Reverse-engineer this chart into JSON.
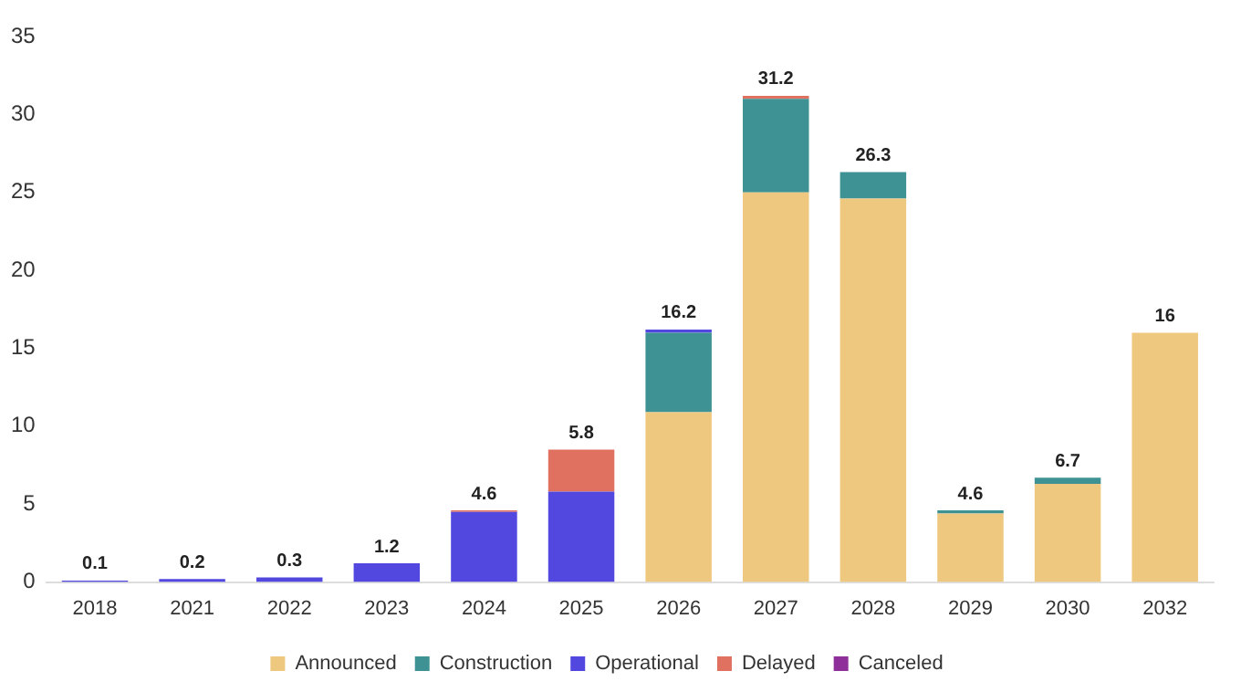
{
  "chart_data": {
    "type": "bar",
    "stacked": true,
    "categories": [
      "2018",
      "2021",
      "2022",
      "2023",
      "2024",
      "2025",
      "2026",
      "2027",
      "2028",
      "2029",
      "2030",
      "2032"
    ],
    "series": [
      {
        "name": "Announced",
        "color": "#efc87f",
        "values": [
          0,
          0,
          0,
          0,
          0,
          0,
          10.9,
          25.0,
          24.6,
          4.4,
          6.3,
          16
        ]
      },
      {
        "name": "Construction",
        "color": "#3f9294",
        "values": [
          0,
          0,
          0,
          0,
          0,
          0,
          5.1,
          6.0,
          1.7,
          0.2,
          0.4,
          0
        ]
      },
      {
        "name": "Operational",
        "color": "#5248e0",
        "values": [
          0.1,
          0.2,
          0.3,
          1.2,
          4.5,
          5.8,
          0.2,
          0,
          0,
          0,
          0,
          0
        ]
      },
      {
        "name": "Delayed",
        "color": "#e07060",
        "values": [
          0,
          0,
          0,
          0,
          0.1,
          2.7,
          0,
          0.2,
          0,
          0,
          0,
          0
        ]
      },
      {
        "name": "Canceled",
        "color": "#8e2f9a",
        "values": [
          0,
          0,
          0,
          0,
          0,
          0,
          0,
          0,
          0,
          0,
          0,
          0
        ]
      }
    ],
    "annotations": [
      {
        "text": "0.1",
        "x": "2018",
        "y": 0.1
      },
      {
        "text": "0.2",
        "x": "2021",
        "y": 0.2
      },
      {
        "text": "0.3",
        "x": "2022",
        "y": 0.3
      },
      {
        "text": "1.2",
        "x": "2023",
        "y": 1.2
      },
      {
        "text": "4.6",
        "x": "2024",
        "y": 4.6
      },
      {
        "text": "5.8",
        "x": "2025",
        "y": 8.5
      },
      {
        "text": "16.2",
        "x": "2026",
        "y": 16.2
      },
      {
        "text": "31.2",
        "x": "2027",
        "y": 31.2
      },
      {
        "text": "26.3",
        "x": "2028",
        "y": 26.3
      },
      {
        "text": "4.6",
        "x": "2029",
        "y": 4.6
      },
      {
        "text": "6.7",
        "x": "2030",
        "y": 6.7
      },
      {
        "text": "16",
        "x": "2032",
        "y": 16
      }
    ],
    "ylim": [
      0,
      35
    ],
    "yticks": [
      0,
      5,
      10,
      15,
      20,
      25,
      30,
      35
    ],
    "grid": false,
    "legend": "bottom"
  }
}
